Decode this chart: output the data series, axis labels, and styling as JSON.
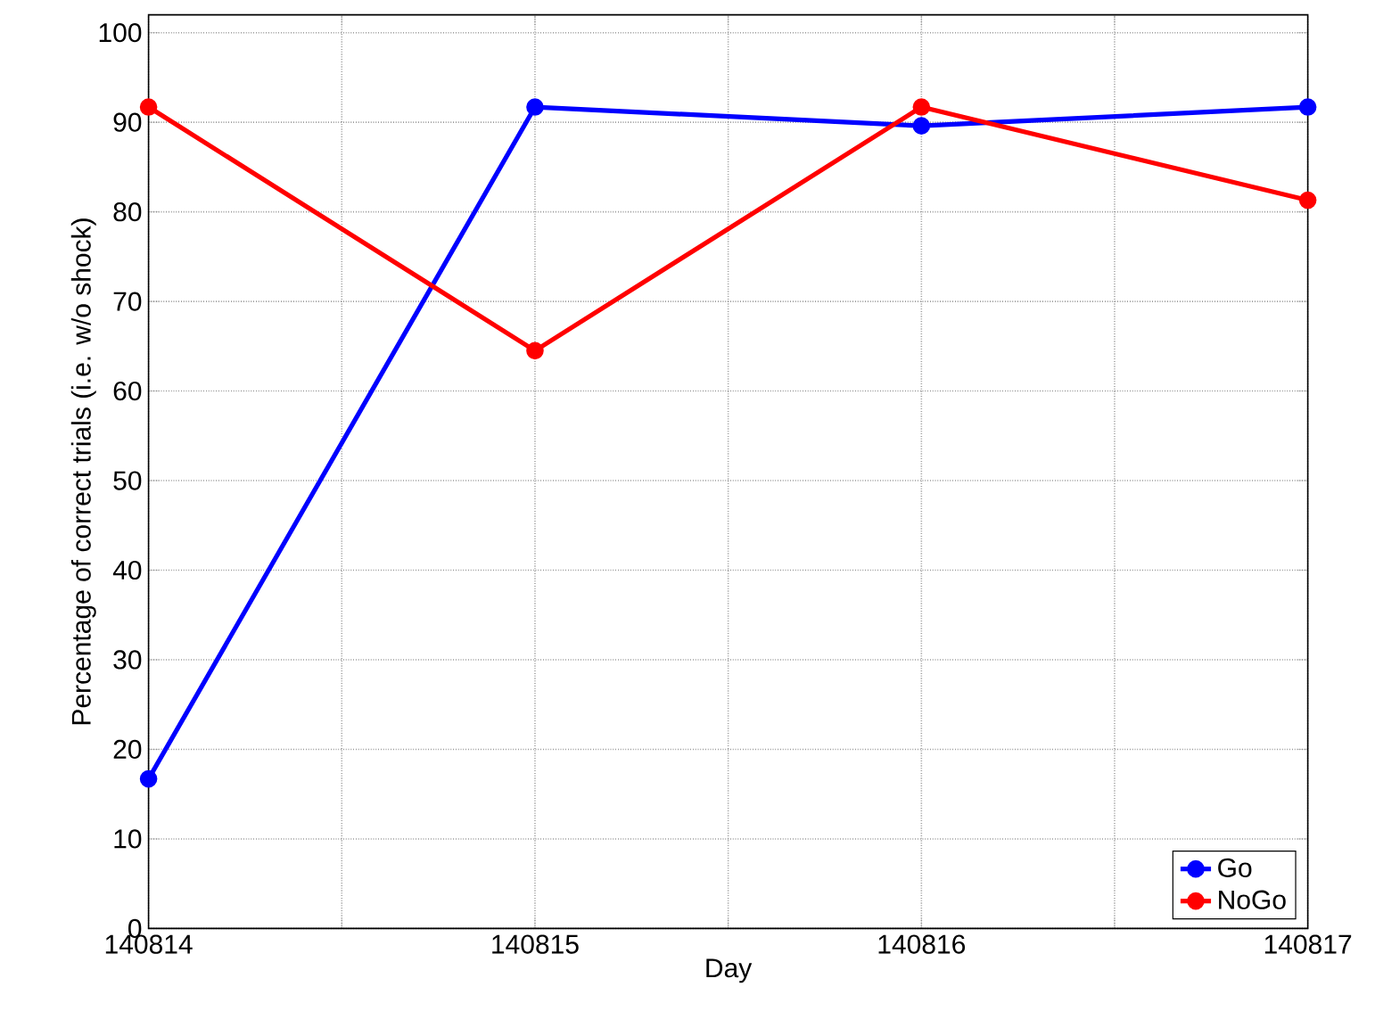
{
  "chart_data": {
    "type": "line",
    "xlabel": "Day",
    "ylabel": "Percentage of correct trials (i.e. w/o shock)",
    "x": [
      140814,
      140815,
      140816,
      140817
    ],
    "series": [
      {
        "name": "Go",
        "color": "#0000ff",
        "values": [
          16.7,
          91.7,
          89.6,
          91.7
        ]
      },
      {
        "name": "NoGo",
        "color": "#ff0000",
        "values": [
          91.7,
          64.5,
          91.7,
          81.3
        ]
      }
    ],
    "xlim": [
      140814,
      140817
    ],
    "xticks": [
      140814,
      {
        "value": 140814.5,
        "label": null
      },
      140815,
      {
        "value": 140815.5,
        "label": null
      },
      140816,
      {
        "value": 140816.5,
        "label": null
      },
      140817
    ],
    "ylim": [
      0,
      102
    ],
    "yticks": [
      0,
      10,
      20,
      30,
      40,
      50,
      60,
      70,
      80,
      90,
      100
    ],
    "grid": true,
    "legend": "bottom right",
    "marker": "circle",
    "line_style": "solid"
  }
}
